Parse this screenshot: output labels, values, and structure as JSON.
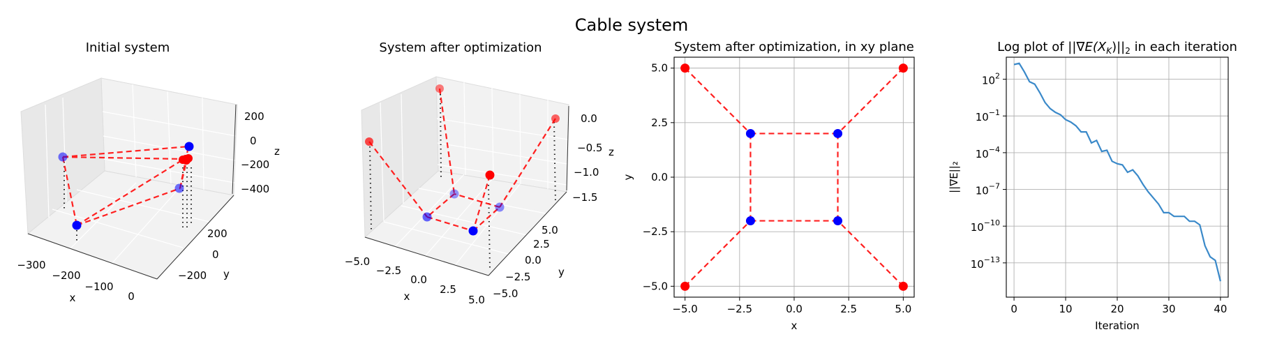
{
  "figure": {
    "suptitle": "Cable system"
  },
  "chart_data": [
    {
      "type": "scatter3d",
      "title": "Initial system",
      "xlabel": "x",
      "ylabel": "y",
      "zlabel": "z",
      "xticks": [
        "−300",
        "−200",
        "−100",
        "0"
      ],
      "yticks": [
        "200",
        "0",
        "−200"
      ],
      "zticks": [
        "200",
        "0",
        "−200",
        "−400"
      ],
      "fixed_points_color": "#ff0000",
      "free_points_color": "#0000ff",
      "grid": true
    },
    {
      "type": "scatter3d",
      "title": "System after optimization",
      "xlabel": "x",
      "ylabel": "y",
      "zlabel": "z",
      "xticks": [
        "−5.0",
        "−2.5",
        "0.0",
        "2.5",
        "5.0"
      ],
      "yticks": [
        "5.0",
        "2.5",
        "0.0",
        "−2.5",
        "−5.0"
      ],
      "zticks": [
        "0.0",
        "−0.5",
        "−1.0",
        "−1.5"
      ],
      "fixed_points_color": "#ff0000",
      "free_points_color": "#0000ff",
      "grid": true
    },
    {
      "type": "scatter",
      "title": "System after optimization, in xy plane",
      "xlabel": "x",
      "ylabel": "y",
      "xlim": [
        -5.5,
        5.5
      ],
      "ylim": [
        -5.5,
        5.5
      ],
      "xticks": [
        -5.0,
        -2.5,
        0.0,
        2.5,
        5.0
      ],
      "yticks": [
        -5.0,
        -2.5,
        0.0,
        2.5,
        5.0
      ],
      "xtick_labels": [
        "−5.0",
        "−2.5",
        "0.0",
        "2.5",
        "5.0"
      ],
      "ytick_labels": [
        "−5.0",
        "−2.5",
        "0.0",
        "2.5",
        "5.0"
      ],
      "fixed_points": [
        [
          -5,
          5
        ],
        [
          5,
          5
        ],
        [
          -5,
          -5
        ],
        [
          5,
          -5
        ]
      ],
      "free_points": [
        [
          -2,
          2
        ],
        [
          2,
          2
        ],
        [
          -2,
          -2
        ],
        [
          2,
          -2
        ]
      ],
      "fixed_points_color": "#ff0000",
      "free_points_color": "#0000ff",
      "grid": true
    },
    {
      "type": "line",
      "title_prefix": "Log plot of ",
      "title_math": "||∇E(X",
      "title_sub": "K",
      "title_math_end": ")||",
      "title_sub2": "2",
      "title_suffix": " in each iteration",
      "xlabel": "Iteration",
      "ylabel": "||∇E||₂",
      "yscale": "log",
      "xlim": [
        -1.5,
        41.5
      ],
      "ylim_log10": [
        -15.8,
        3.8
      ],
      "xticks": [
        0,
        10,
        20,
        30,
        40
      ],
      "yticks_log10": [
        2,
        -1,
        -4,
        -7,
        -10,
        -13
      ],
      "ytick_labels": [
        "10",
        "10",
        "10",
        "10",
        "10",
        "10"
      ],
      "ytick_exponents": [
        "2",
        "−1",
        "−4",
        "−7",
        "−10",
        "−13"
      ],
      "x": [
        0,
        1,
        2,
        3,
        4,
        5,
        6,
        7,
        8,
        9,
        10,
        11,
        12,
        13,
        14,
        15,
        16,
        17,
        18,
        19,
        20,
        21,
        22,
        23,
        24,
        25,
        26,
        27,
        28,
        29,
        30,
        31,
        32,
        33,
        34,
        35,
        36,
        37,
        38,
        39,
        40
      ],
      "log10_values": [
        3.2,
        3.3,
        2.6,
        1.8,
        1.6,
        0.9,
        0.1,
        -0.4,
        -0.7,
        -0.9,
        -1.3,
        -1.5,
        -1.8,
        -2.3,
        -2.3,
        -3.2,
        -3.0,
        -3.9,
        -3.8,
        -4.7,
        -4.9,
        -5.0,
        -5.6,
        -5.4,
        -5.9,
        -6.6,
        -7.2,
        -7.7,
        -8.2,
        -8.9,
        -8.9,
        -9.2,
        -9.2,
        -9.2,
        -9.6,
        -9.6,
        -9.9,
        -11.6,
        -12.5,
        -12.8,
        -14.5
      ],
      "line_color": "#3a89c9",
      "grid": true
    }
  ]
}
